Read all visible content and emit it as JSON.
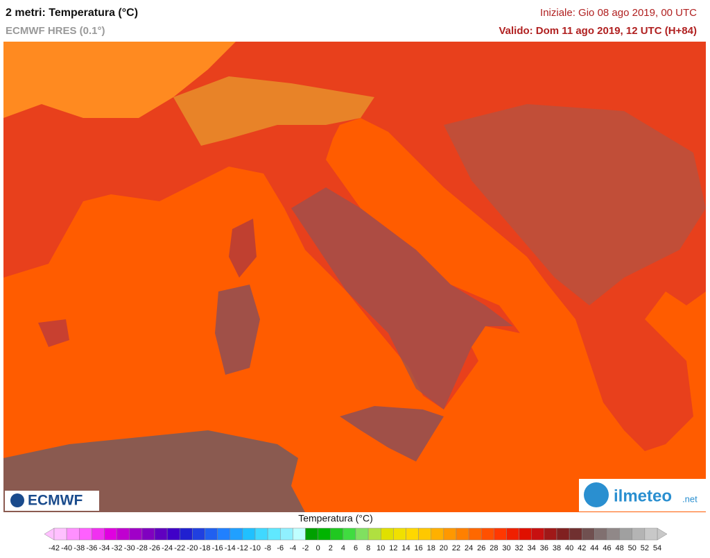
{
  "header": {
    "title": "2 metri: Temperatura (°C)",
    "subtitle": "ECMWF HRES (0.1°)",
    "initial": "Iniziale: Gio 08 ago 2019, 00 UTC",
    "valid": "Valido: Dom 11 ago 2019, 12 UTC (H+84)"
  },
  "logos": {
    "left": "ECMWF",
    "right": "ilmeteo",
    "right_suffix": ".net"
  },
  "colorbar": {
    "title": "Temperatura (°C)",
    "ticks": [
      -42,
      -40,
      -38,
      -36,
      -34,
      -32,
      -30,
      -28,
      -26,
      -24,
      -22,
      -20,
      -18,
      -16,
      -14,
      -12,
      -10,
      -8,
      -6,
      -4,
      -2,
      0,
      2,
      4,
      6,
      8,
      10,
      12,
      14,
      16,
      18,
      20,
      22,
      24,
      26,
      28,
      30,
      32,
      34,
      36,
      38,
      40,
      42,
      44,
      46,
      48,
      50,
      52,
      54
    ],
    "colors": [
      "#ffc0ff",
      "#ff90ff",
      "#ff60ff",
      "#f030f0",
      "#e000e0",
      "#c000d0",
      "#a000c8",
      "#8000c0",
      "#6000c0",
      "#4000c8",
      "#2020d0",
      "#2040e0",
      "#2060f0",
      "#2080ff",
      "#20a0ff",
      "#20c0ff",
      "#40d8ff",
      "#60e8ff",
      "#90f0ff",
      "#c0ffff",
      "#00a000",
      "#00b400",
      "#20c820",
      "#40dc40",
      "#80e060",
      "#b0e040",
      "#e0e000",
      "#f0e000",
      "#ffd800",
      "#ffc800",
      "#ffb000",
      "#ff9800",
      "#ff8000",
      "#ff6800",
      "#ff5000",
      "#ff3800",
      "#f02000",
      "#e01000",
      "#c81010",
      "#a01818",
      "#802020",
      "#703030",
      "#705050",
      "#807070",
      "#908888",
      "#a0a0a0",
      "#b4b4b4",
      "#c8c8c8"
    ]
  }
}
